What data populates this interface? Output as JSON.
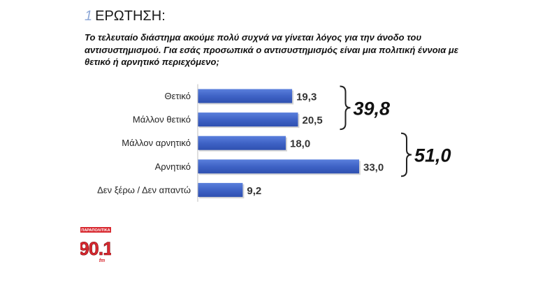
{
  "question": {
    "number": "1",
    "label": "ΕΡΩΤΗΣΗ:",
    "text": "Το τελευταίο διάστημα ακούμε πολύ συχνά να γίνεται λόγος για την άνοδο του αντισυστημισμού. Για εσάς προσωπικά ο αντισυστημισμός είναι μια πολιτική έννοια με θετικό ή αρνητικό περιεχόμενο;"
  },
  "chart_data": {
    "type": "bar",
    "orientation": "horizontal",
    "categories": [
      "Θετικό",
      "Μάλλον θετικό",
      "Μάλλον αρνητικό",
      "Αρνητικό",
      "Δεν ξέρω / Δεν απαντώ"
    ],
    "values": [
      19.3,
      20.5,
      18.0,
      33.0,
      9.2
    ],
    "value_labels": [
      "19,3",
      "20,5",
      "18,0",
      "33,0",
      "9,2"
    ],
    "groups": [
      {
        "label": "39,8",
        "from": 0,
        "to": 1
      },
      {
        "label": "51,0",
        "from": 2,
        "to": 3
      }
    ],
    "bar_color": "#3f63c6",
    "grid": false,
    "legend": "none"
  },
  "logo": {
    "top_text": "ΠΑΡΑΠΟΛΙΤΙΚΑ",
    "number": "90.1",
    "sub_text": "fm",
    "color": "#d8282f"
  }
}
